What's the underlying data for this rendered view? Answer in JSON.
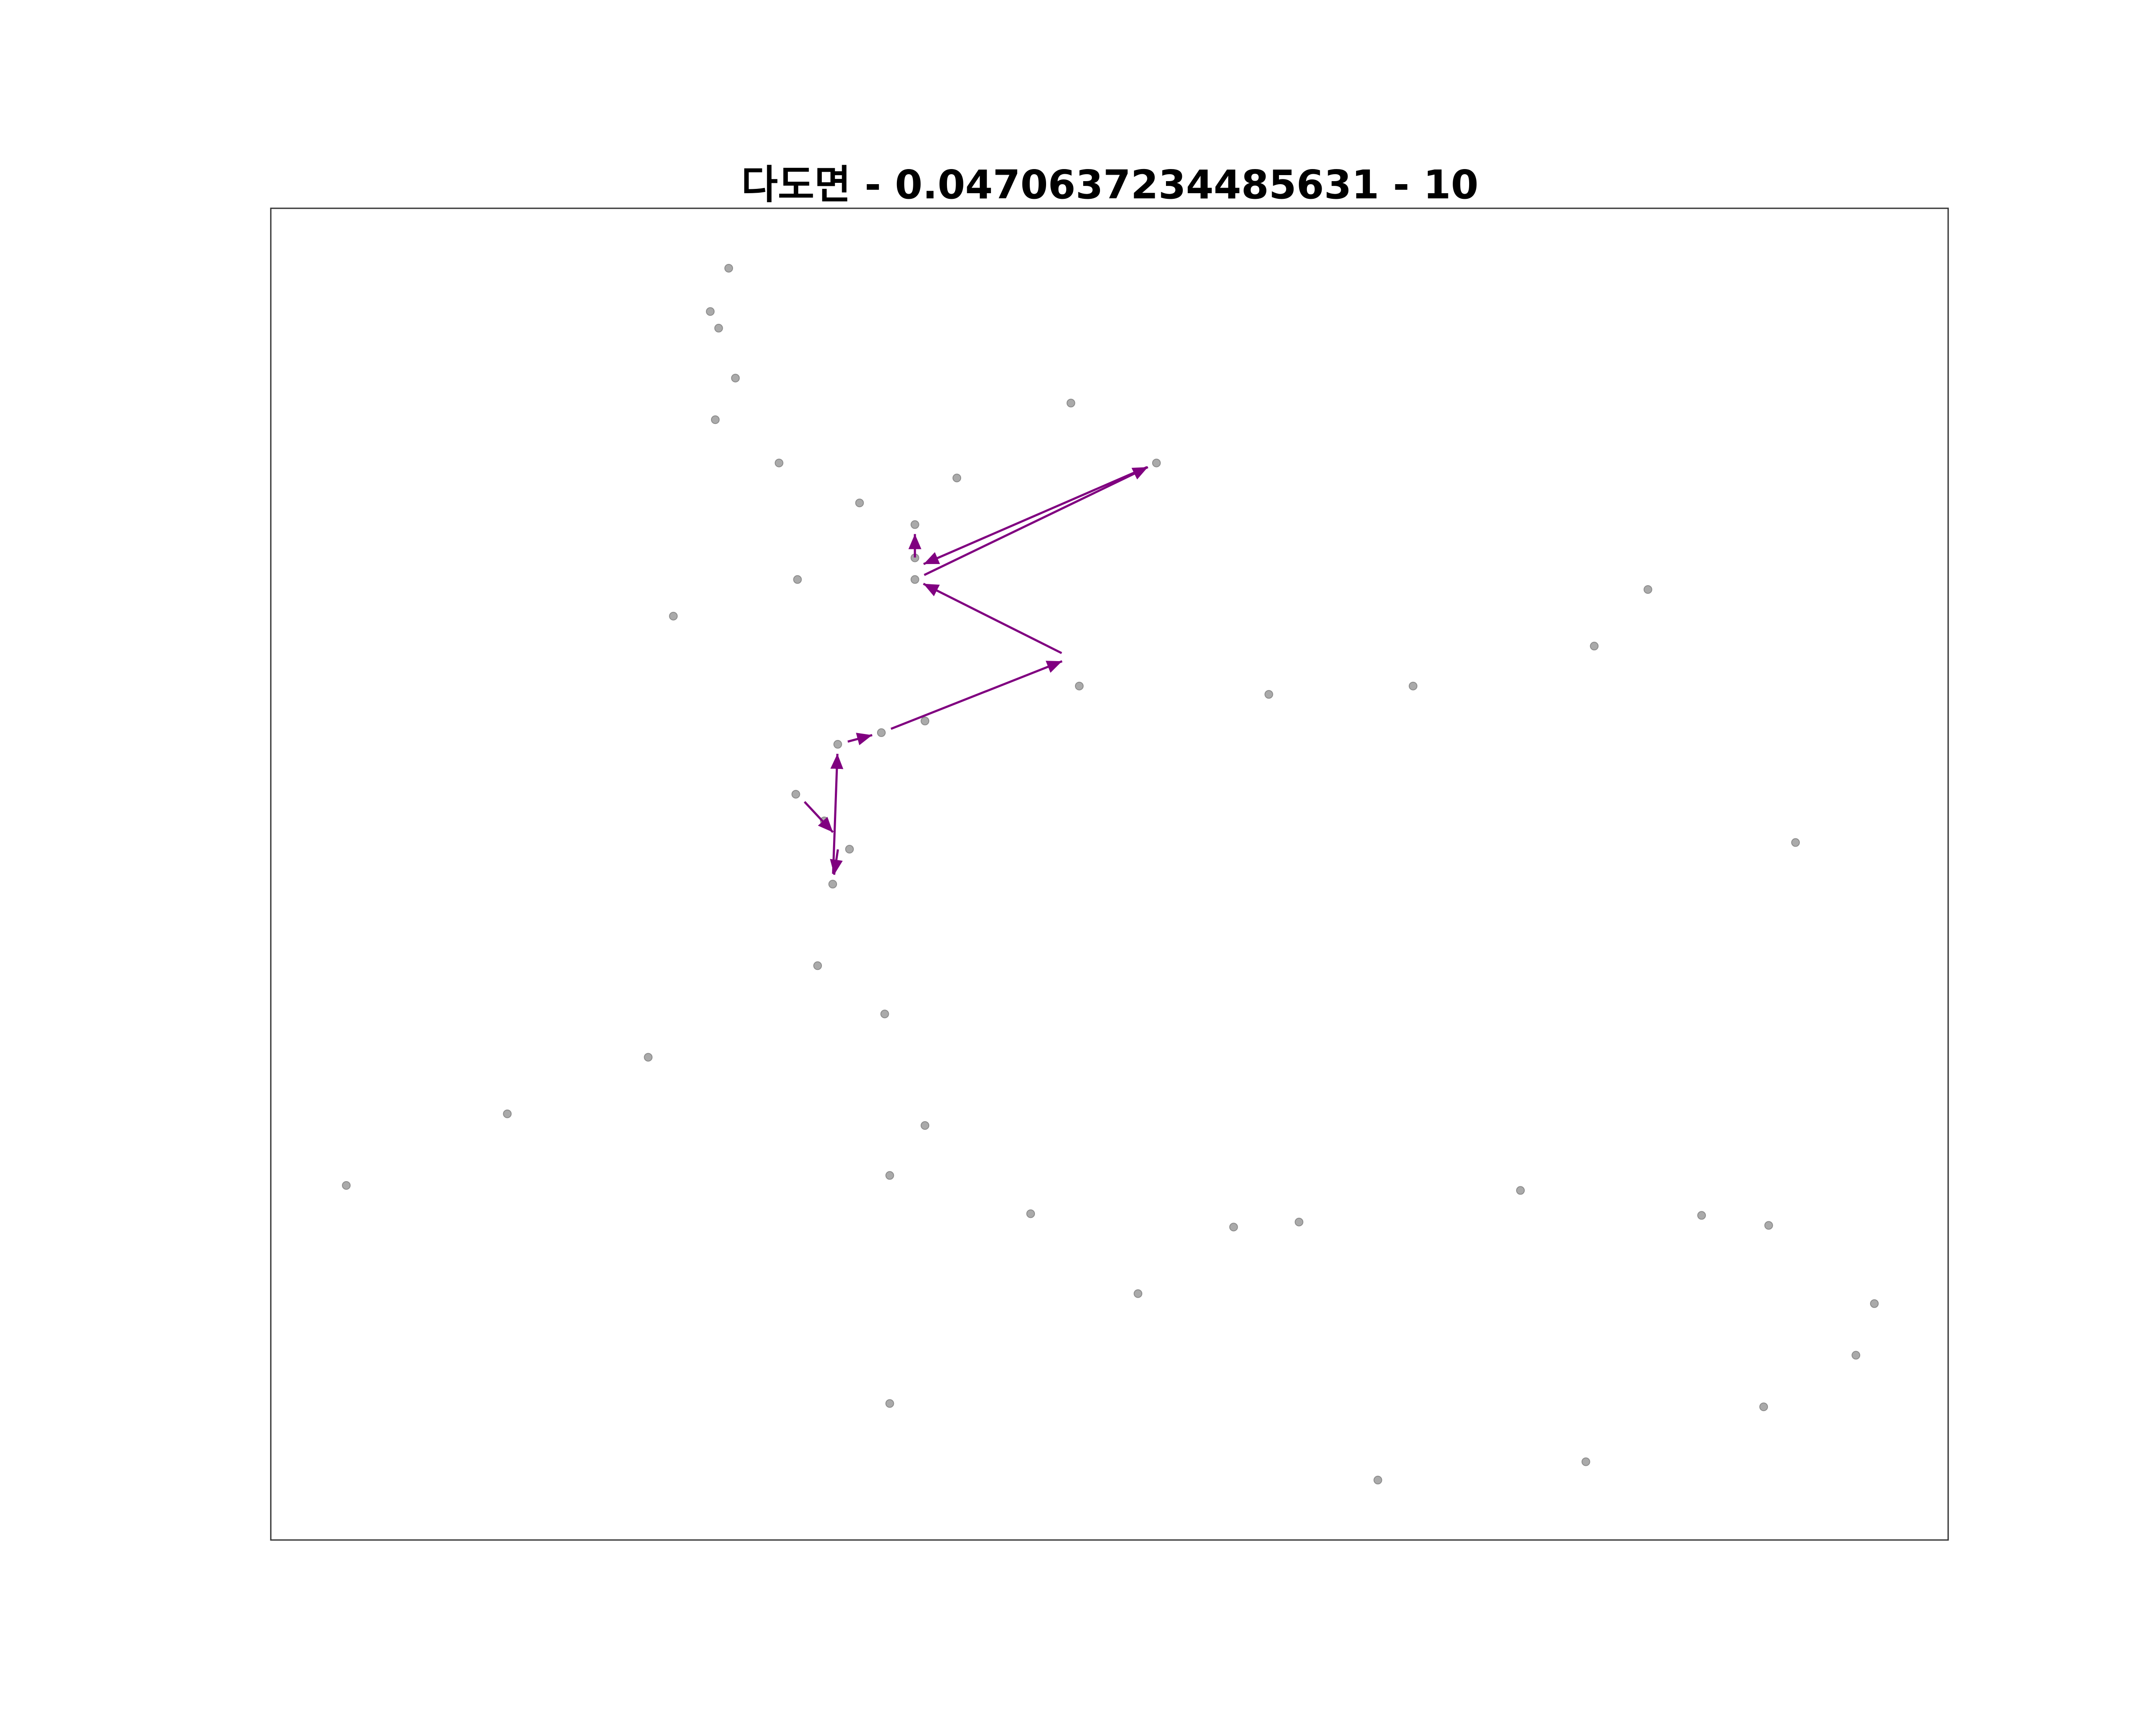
{
  "chart_data": {
    "type": "scatter",
    "title": "다도면 - 0.0470637234485631 - 10",
    "xlabel": "",
    "ylabel": "",
    "xlim": [
      0,
      1000
    ],
    "ylim": [
      0,
      800
    ],
    "grid": false,
    "axes_ticks": false,
    "legend": "none",
    "colors": {
      "point": "#aaaaaa",
      "point_edge": "#8c8c8c",
      "path": "#800080",
      "frame": "#333333"
    },
    "points": [
      {
        "x": 273,
        "y": 764
      },
      {
        "x": 262,
        "y": 738
      },
      {
        "x": 267,
        "y": 728
      },
      {
        "x": 277,
        "y": 698
      },
      {
        "x": 265,
        "y": 673
      },
      {
        "x": 303,
        "y": 647
      },
      {
        "x": 351,
        "y": 623
      },
      {
        "x": 409,
        "y": 638
      },
      {
        "x": 477,
        "y": 683
      },
      {
        "x": 528,
        "y": 647
      },
      {
        "x": 384,
        "y": 610
      },
      {
        "x": 384,
        "y": 590
      },
      {
        "x": 384,
        "y": 577
      },
      {
        "x": 314,
        "y": 577
      },
      {
        "x": 240,
        "y": 555
      },
      {
        "x": 482,
        "y": 513
      },
      {
        "x": 595,
        "y": 508
      },
      {
        "x": 681,
        "y": 513
      },
      {
        "x": 789,
        "y": 537
      },
      {
        "x": 821,
        "y": 571
      },
      {
        "x": 390,
        "y": 492
      },
      {
        "x": 364,
        "y": 485
      },
      {
        "x": 338,
        "y": 478
      },
      {
        "x": 313,
        "y": 448
      },
      {
        "x": 330,
        "y": 432
      },
      {
        "x": 345,
        "y": 415
      },
      {
        "x": 335,
        "y": 394
      },
      {
        "x": 909,
        "y": 419
      },
      {
        "x": 326,
        "y": 345
      },
      {
        "x": 366,
        "y": 316
      },
      {
        "x": 225,
        "y": 290
      },
      {
        "x": 141,
        "y": 256
      },
      {
        "x": 45,
        "y": 213
      },
      {
        "x": 390,
        "y": 249
      },
      {
        "x": 369,
        "y": 219
      },
      {
        "x": 453,
        "y": 196
      },
      {
        "x": 574,
        "y": 188
      },
      {
        "x": 613,
        "y": 191
      },
      {
        "x": 745,
        "y": 210
      },
      {
        "x": 853,
        "y": 195
      },
      {
        "x": 893,
        "y": 189
      },
      {
        "x": 517,
        "y": 148
      },
      {
        "x": 956,
        "y": 142
      },
      {
        "x": 945,
        "y": 111
      },
      {
        "x": 890,
        "y": 80
      },
      {
        "x": 369,
        "y": 82
      },
      {
        "x": 660,
        "y": 36
      },
      {
        "x": 784,
        "y": 47
      }
    ],
    "path": [
      {
        "x": 314,
        "y": 448
      },
      {
        "x": 339,
        "y": 421
      },
      {
        "x": 335,
        "y": 394
      },
      {
        "x": 338,
        "y": 478
      },
      {
        "x": 364,
        "y": 485
      },
      {
        "x": 477,
        "y": 530
      },
      {
        "x": 384,
        "y": 577
      },
      {
        "x": 528,
        "y": 647
      },
      {
        "x": 384,
        "y": 584
      },
      {
        "x": 384,
        "y": 610
      }
    ]
  }
}
